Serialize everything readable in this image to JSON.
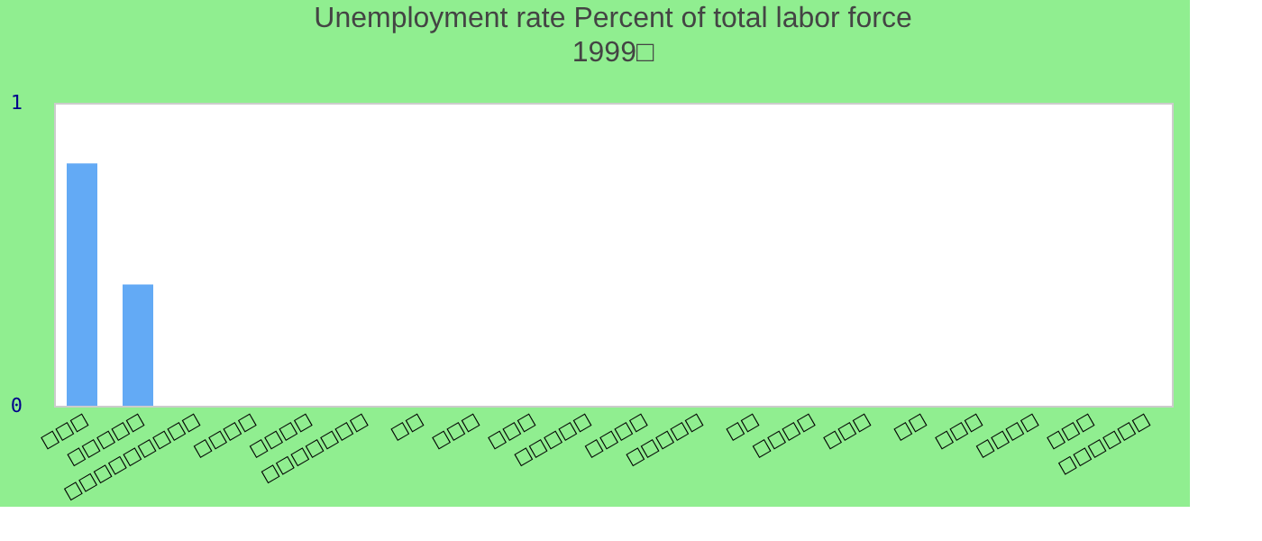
{
  "chart_data": {
    "type": "bar",
    "title": "Unemployment rate  Percent of total labor force",
    "subtitle": "1999□",
    "categories": [
      "□□□",
      "□□□□□",
      "□□□□□□□□□",
      "□□□□",
      "□□□□",
      "□□□□□□□",
      "□□",
      "□□□",
      "□□□",
      "□□□□□",
      "□□□□",
      "□□□□□",
      "□□",
      "□□□□",
      "□□□",
      "□□",
      "□□□",
      "□□□□",
      "□□□",
      "□□□□□□"
    ],
    "values": [
      0.8,
      0.4,
      0,
      0,
      0,
      0,
      0,
      0,
      0,
      0,
      0,
      0,
      0,
      0,
      0,
      0,
      0,
      0,
      0,
      0
    ],
    "color": "#63aaf5",
    "ylim": [
      0,
      1
    ],
    "yticks": [
      0,
      1
    ],
    "grid": false
  }
}
